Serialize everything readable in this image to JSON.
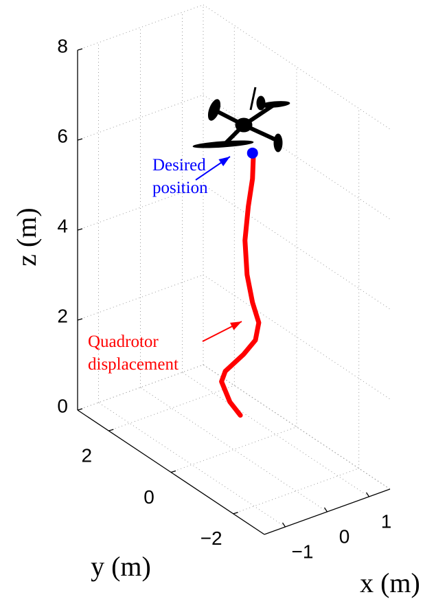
{
  "chart_data": {
    "type": "line3d",
    "xlabel": "x (m)",
    "ylabel": "y (m)",
    "zlabel": "z (m)",
    "xlim": [
      -1.5,
      1.5
    ],
    "ylim": [
      -3,
      3
    ],
    "zlim": [
      0,
      8
    ],
    "xticks": [
      {
        "value": -1,
        "label": "−1"
      },
      0,
      1
    ],
    "yticks": [
      {
        "value": -2,
        "label": "−2"
      },
      0,
      2
    ],
    "zticks": [
      0,
      2,
      4,
      6,
      8
    ],
    "grid": true,
    "series": [
      {
        "color": "#ff0000",
        "x": [
          0.9,
          0.65,
          0.45,
          0.54,
          0.98,
          1.26,
          1.34,
          1.19,
          1.06,
          1.01,
          1.09,
          1.19,
          1.21
        ],
        "y": [
          1,
          1,
          1,
          1,
          1,
          1,
          1,
          1,
          1,
          1,
          1,
          1,
          1
        ],
        "z": [
          0,
          0.38,
          0.9,
          1.1,
          1.33,
          1.55,
          1.91,
          2.41,
          3.07,
          3.85,
          4.58,
          5.16,
          5.64
        ]
      }
    ],
    "target": {
      "x": 1.19,
      "y": 1,
      "z": 5.73,
      "color": "#0000ff"
    },
    "annotations": [
      {
        "text": [
          "Desired",
          "position"
        ],
        "color": "#0000ff"
      },
      {
        "text": [
          "Quadrotor",
          "displacement"
        ],
        "color": "#ff0000"
      }
    ]
  }
}
